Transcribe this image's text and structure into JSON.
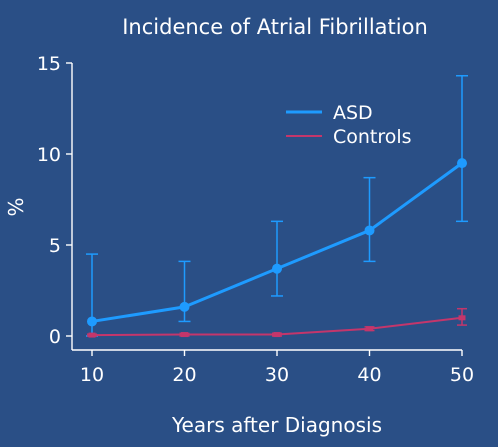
{
  "chart_data": {
    "type": "line",
    "title": "Incidence of Atrial Fibrillation",
    "xlabel": "Years after Diagnosis",
    "ylabel": "%",
    "x": [
      10,
      20,
      30,
      40,
      50
    ],
    "xticks": [
      "10",
      "20",
      "30",
      "40",
      "50"
    ],
    "yticks": [
      "0",
      "5",
      "10",
      "15"
    ],
    "xlim": [
      10,
      50
    ],
    "ylim": [
      0,
      15
    ],
    "grid": false,
    "legend_position": "top-right",
    "series": [
      {
        "name": "ASD",
        "color": "#1e9bff",
        "values": [
          0.8,
          1.6,
          3.7,
          5.8,
          9.5
        ],
        "error_low": [
          0.0,
          0.8,
          2.2,
          4.1,
          6.3
        ],
        "error_high": [
          4.5,
          4.1,
          6.3,
          8.7,
          14.3
        ]
      },
      {
        "name": "Controls",
        "color": "#c4366b",
        "values": [
          0.05,
          0.08,
          0.08,
          0.4,
          1.0
        ],
        "error_low": [
          0.0,
          0.0,
          0.0,
          0.3,
          0.6
        ],
        "error_high": [
          0.1,
          0.15,
          0.15,
          0.5,
          1.5
        ]
      }
    ]
  }
}
